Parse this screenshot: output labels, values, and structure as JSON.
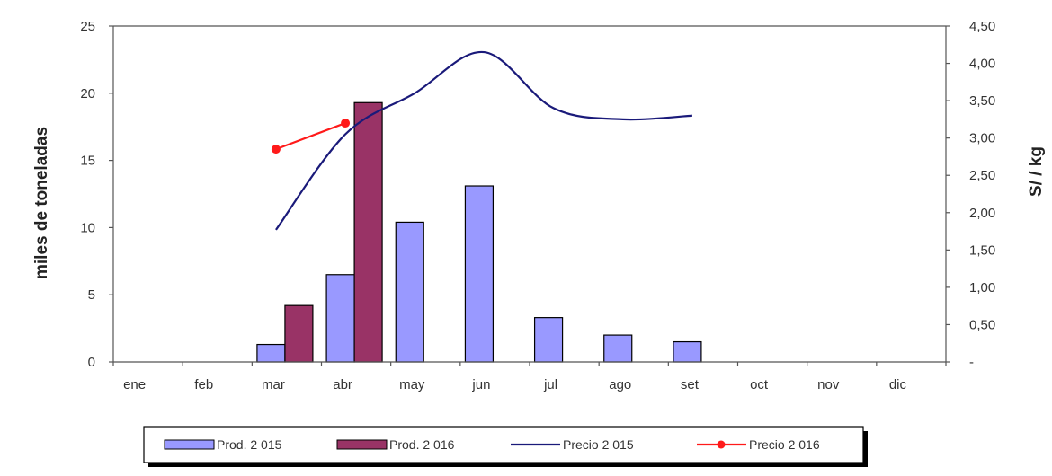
{
  "chart_data": {
    "type": "bar",
    "categories": [
      "ene",
      "feb",
      "mar",
      "abr",
      "may",
      "jun",
      "jul",
      "ago",
      "set",
      "oct",
      "nov",
      "dic"
    ],
    "ylabel": "miles de toneladas",
    "y2label": "S/ / kg",
    "ylim": [
      0,
      25
    ],
    "y2lim": [
      0,
      4.5
    ],
    "yticks": [
      "0",
      "5",
      "10",
      "15",
      "20",
      "25"
    ],
    "y2ticks": [
      "-",
      "0,50",
      "1,00",
      "1,50",
      "2,00",
      "2,50",
      "3,00",
      "3,50",
      "4,00",
      "4,50"
    ],
    "grid": false,
    "legend_position": "bottom",
    "series": [
      {
        "name": "Prod. 2 015",
        "type": "bar",
        "axis": "left",
        "color": "#9999ff",
        "values": [
          null,
          null,
          1.3,
          6.5,
          10.4,
          13.1,
          3.3,
          2.0,
          1.5,
          null,
          null,
          null
        ]
      },
      {
        "name": "Prod. 2 016",
        "type": "bar",
        "axis": "left",
        "color": "#993366",
        "values": [
          null,
          null,
          4.2,
          19.3,
          null,
          null,
          null,
          null,
          null,
          null,
          null,
          null
        ]
      },
      {
        "name": "Precio 2 015",
        "type": "line",
        "axis": "right",
        "color": "#1a1a7a",
        "values": [
          null,
          null,
          1.77,
          3.05,
          3.6,
          4.15,
          3.4,
          3.25,
          3.3,
          null,
          null,
          null
        ]
      },
      {
        "name": "Precio 2 016",
        "type": "line",
        "axis": "right",
        "color": "#ff1a1a",
        "values": [
          null,
          null,
          2.85,
          3.2,
          null,
          null,
          null,
          null,
          null,
          null,
          null,
          null
        ]
      }
    ]
  }
}
